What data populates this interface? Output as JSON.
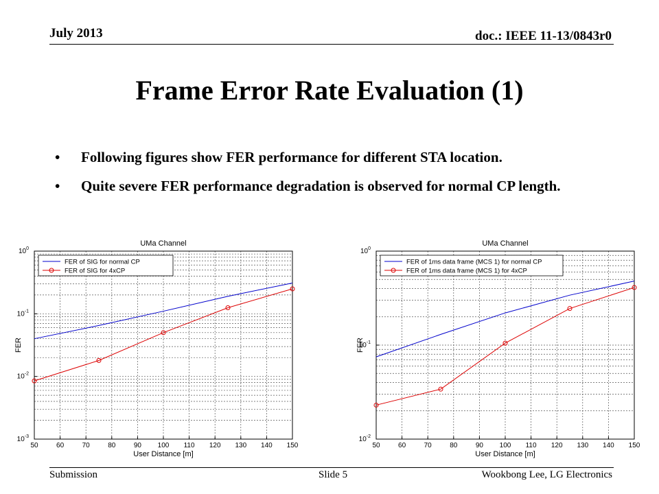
{
  "header": {
    "date": "July 2013",
    "doc_id": "doc.: IEEE 11-13/0843r0"
  },
  "title": "Frame Error Rate Evaluation (1)",
  "bullets": [
    "Following figures show FER performance for different STA location.",
    "Quite severe FER performance degradation is observed for normal CP length."
  ],
  "footer": {
    "left": "Submission",
    "center": "Slide 5",
    "right": "Wookbong Lee, LG Electronics"
  },
  "chart_data": [
    {
      "type": "line",
      "title": "UMa Channel",
      "xlabel": "User Distance [m]",
      "ylabel": "FER",
      "xlim": [
        50,
        150
      ],
      "xticks": [
        50,
        60,
        70,
        80,
        90,
        100,
        110,
        120,
        130,
        140,
        150
      ],
      "y_scale": "log",
      "ylim": [
        0.001,
        1
      ],
      "yticks": [
        {
          "value": 0.001,
          "base": "10",
          "exp": "-3"
        },
        {
          "value": 0.01,
          "base": "10",
          "exp": "-2"
        },
        {
          "value": 0.1,
          "base": "10",
          "exp": "-1"
        },
        {
          "value": 1,
          "base": "10",
          "exp": "0"
        }
      ],
      "grid": true,
      "legend_position": "top-left",
      "series": [
        {
          "name": "FER of SIG for normal CP",
          "color": "#0000cc",
          "marker": "none",
          "x": [
            50,
            75,
            100,
            125,
            150
          ],
          "y": [
            0.04,
            0.065,
            0.11,
            0.19,
            0.31
          ]
        },
        {
          "name": "FER of SIG for 4xCP",
          "color": "#dd0000",
          "marker": "circle",
          "x": [
            50,
            75,
            100,
            125,
            150
          ],
          "y": [
            0.0085,
            0.018,
            0.05,
            0.125,
            0.25
          ]
        }
      ]
    },
    {
      "type": "line",
      "title": "UMa Channel",
      "xlabel": "User Distance [m]",
      "ylabel": "FER",
      "xlim": [
        50,
        150
      ],
      "xticks": [
        50,
        60,
        70,
        80,
        90,
        100,
        110,
        120,
        130,
        140,
        150
      ],
      "y_scale": "log",
      "ylim": [
        0.01,
        1
      ],
      "yticks": [
        {
          "value": 0.01,
          "base": "10",
          "exp": "-2"
        },
        {
          "value": 0.1,
          "base": "10",
          "exp": "-1"
        },
        {
          "value": 1,
          "base": "10",
          "exp": "0"
        }
      ],
      "grid": true,
      "legend_position": "top-left",
      "series": [
        {
          "name": "FER of 1ms data frame (MCS 1) for normal CP",
          "color": "#0000cc",
          "marker": "none",
          "x": [
            50,
            75,
            100,
            125,
            150
          ],
          "y": [
            0.075,
            0.13,
            0.22,
            0.34,
            0.48
          ]
        },
        {
          "name": "FER of 1ms data frame (MCS 1) for 4xCP",
          "color": "#dd0000",
          "marker": "circle",
          "x": [
            50,
            75,
            100,
            125,
            150
          ],
          "y": [
            0.023,
            0.034,
            0.105,
            0.245,
            0.41
          ]
        }
      ]
    }
  ]
}
